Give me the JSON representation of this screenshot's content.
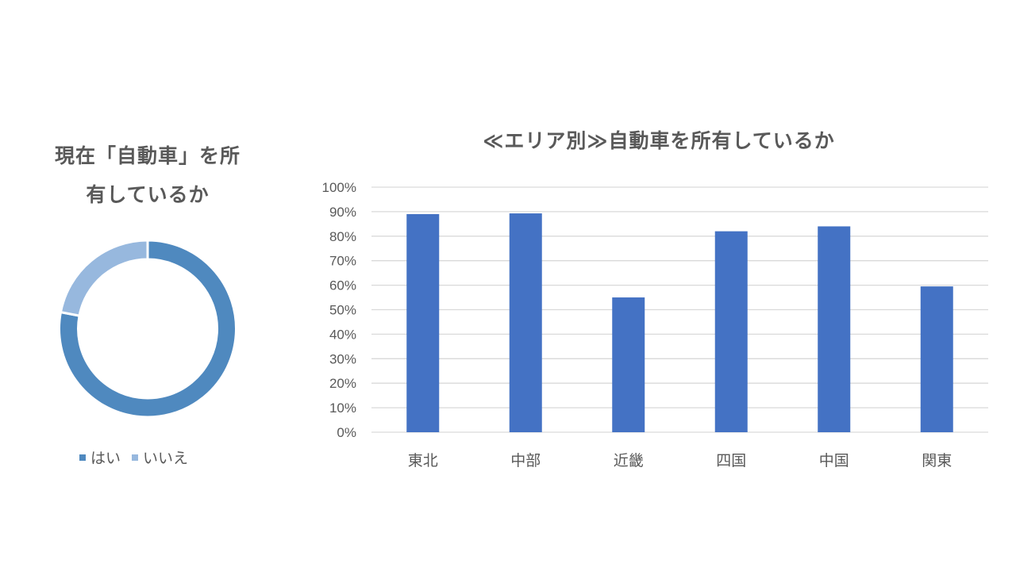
{
  "chart_data": [
    {
      "type": "pie",
      "variant": "donut",
      "title": "現在「自動車」を所有しているか",
      "title_lines": [
        "現在「自動車」を所",
        "有しているか"
      ],
      "categories": [
        "はい",
        "いいえ"
      ],
      "values": [
        78,
        22
      ],
      "colors": [
        "#4F89BF",
        "#97B8DE"
      ],
      "legend_position": "bottom"
    },
    {
      "type": "bar",
      "title": "≪エリア別≫自動車を所有しているか",
      "categories": [
        "東北",
        "中部",
        "近畿",
        "四国",
        "中国",
        "関東"
      ],
      "values": [
        89,
        89.3,
        55,
        82,
        84,
        59.5
      ],
      "unit": "%",
      "xlabel": "",
      "ylabel": "",
      "ylim": [
        0,
        100
      ],
      "yticks": [
        "0%",
        "10%",
        "20%",
        "30%",
        "40%",
        "50%",
        "60%",
        "70%",
        "80%",
        "90%",
        "100%"
      ],
      "grid": true,
      "bar_color": "#4472C4",
      "legend": false
    }
  ],
  "donut": {
    "title_line1": "現在「自動車」を所",
    "title_line2": "有しているか",
    "legend": [
      {
        "label": "はい",
        "color": "#4F89BF"
      },
      {
        "label": "いいえ",
        "color": "#97B8DE"
      }
    ]
  },
  "bar": {
    "title": "≪エリア別≫自動車を所有しているか"
  }
}
